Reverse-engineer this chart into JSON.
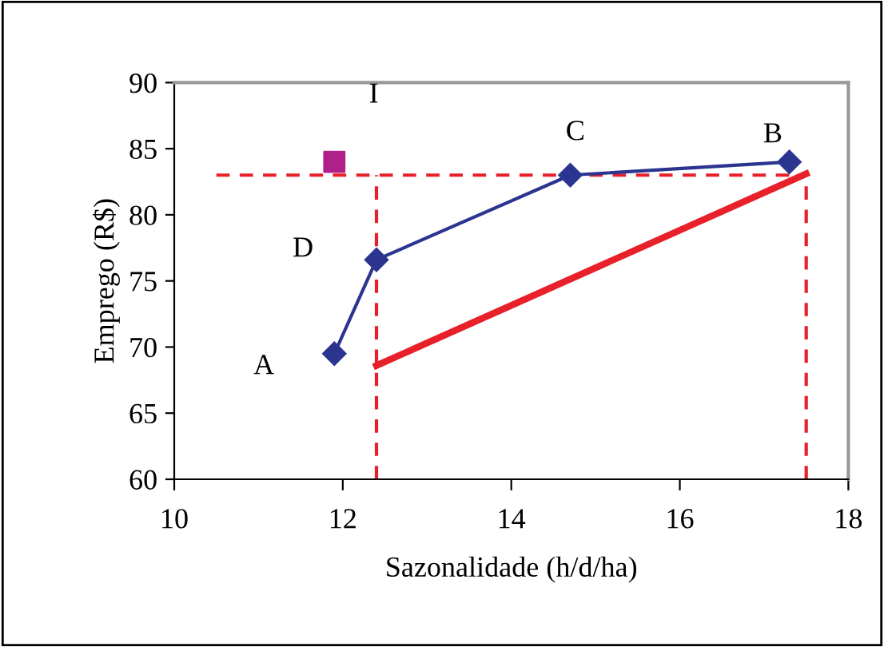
{
  "chart_data": {
    "type": "line",
    "xlabel": "Sazonalidade (h/d/ha)",
    "ylabel": "Emprego (R$)",
    "xlim": [
      10,
      18
    ],
    "xticks": [
      10,
      12,
      14,
      16,
      18
    ],
    "ylim": [
      60,
      90
    ],
    "yticks": [
      60,
      65,
      70,
      75,
      80,
      85,
      90
    ],
    "grid": false,
    "series": [
      {
        "color": "#2b3590",
        "marker": "diamond",
        "line_style": "solid",
        "x": [
          11.9,
          12.4,
          14.7,
          17.3
        ],
        "values": [
          69.5,
          76.6,
          83.0,
          84.0
        ]
      },
      {
        "type": "scatter",
        "color": "#b0208a",
        "marker": "square",
        "x": [
          11.9
        ],
        "values": [
          84.0
        ]
      },
      {
        "type": "line",
        "color": "#e8202a",
        "marker": "none",
        "line_style": "solid",
        "x": [
          12.4,
          17.5
        ],
        "values": [
          68.6,
          83.1
        ]
      },
      {
        "type": "line",
        "color": "#e8202a",
        "marker": "none",
        "line_style": "dashed",
        "x": [
          10.5,
          17.5
        ],
        "values": [
          83,
          83
        ]
      },
      {
        "type": "line",
        "color": "#e8202a",
        "marker": "none",
        "line_style": "dashed",
        "x": [
          12.4,
          12.4
        ],
        "values": [
          60,
          83
        ]
      },
      {
        "type": "line",
        "color": "#e8202a",
        "marker": "none",
        "line_style": "dashed",
        "x": [
          17.5,
          17.5
        ],
        "values": [
          60,
          83
        ]
      }
    ],
    "annotations": [
      "A",
      "D",
      "C",
      "B",
      "I"
    ]
  }
}
